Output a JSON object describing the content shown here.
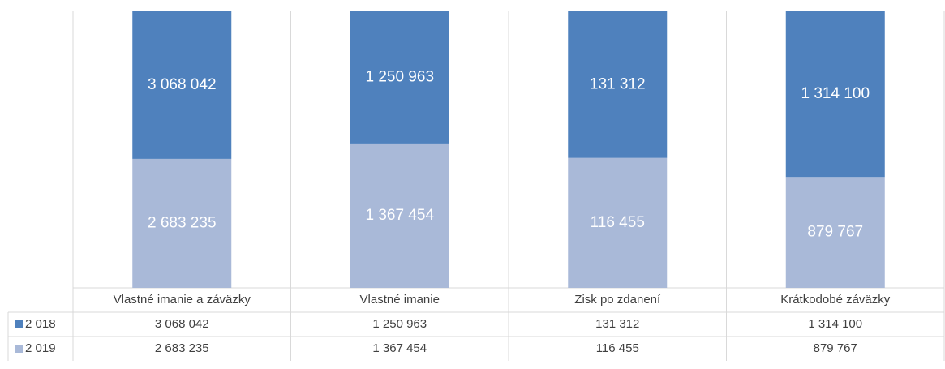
{
  "chart_data": {
    "type": "bar",
    "stacked": "percent",
    "categories": [
      "Vlastné imanie a záväzky",
      "Vlastné imanie",
      "Zisk po zdanení",
      "Krátkodobé záväzky"
    ],
    "series": [
      {
        "name": "2 019",
        "color": "#a9b9d8",
        "values": [
          2683235,
          1367454,
          116455,
          879767
        ],
        "value_labels": [
          "2 683 235",
          "1 367 454",
          "116 455",
          "879 767"
        ]
      },
      {
        "name": "2 018",
        "color": "#4f81bd",
        "values": [
          3068042,
          1250963,
          131312,
          1314100
        ],
        "value_labels": [
          "3 068 042",
          "1 250 963",
          "131 312",
          "1 314 100"
        ]
      }
    ],
    "data_table": true
  }
}
